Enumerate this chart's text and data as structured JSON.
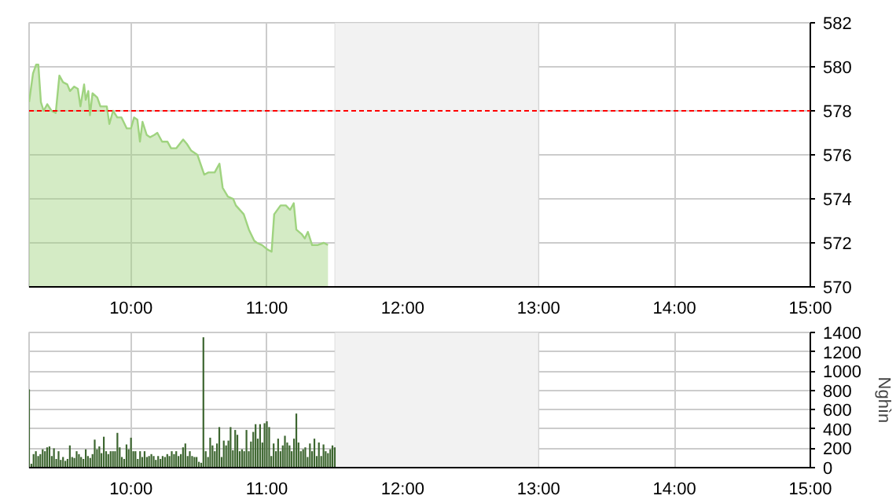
{
  "chart_data": [
    {
      "type": "area",
      "x": [
        9.25,
        9.279,
        9.302,
        9.318,
        9.337,
        9.357,
        9.384,
        9.415,
        9.446,
        9.473,
        9.5,
        9.531,
        9.551,
        9.582,
        9.609,
        9.628,
        9.655,
        9.667,
        9.686,
        9.698,
        9.717,
        9.752,
        9.775,
        9.822,
        9.841,
        9.868,
        9.899,
        9.93,
        9.969,
        10.0,
        10.023,
        10.047,
        10.066,
        10.085,
        10.116,
        10.14,
        10.171,
        10.194,
        10.229,
        10.268,
        10.295,
        10.334,
        10.384,
        10.411,
        10.442,
        10.489,
        10.539,
        10.57,
        10.616,
        10.651,
        10.675,
        10.713,
        10.752,
        10.772,
        10.83,
        10.868,
        10.907,
        10.927,
        10.965,
        11.004,
        11.035,
        11.054,
        11.101,
        11.14,
        11.171,
        11.198,
        11.217,
        11.256,
        11.279,
        11.302,
        11.333,
        11.372,
        11.419,
        11.45
      ],
      "series": [
        {
          "color": "#9fd37f",
          "values": [
            578.4,
            579.7,
            580.1,
            580.1,
            578.4,
            578.0,
            578.3,
            578.0,
            577.9,
            579.6,
            579.3,
            579.2,
            578.9,
            579.1,
            579.0,
            578.2,
            579.2,
            578.5,
            578.9,
            577.8,
            578.8,
            578.6,
            578.2,
            578.2,
            577.4,
            578.0,
            577.7,
            577.7,
            577.2,
            577.2,
            577.7,
            577.6,
            576.6,
            577.5,
            576.9,
            576.8,
            576.9,
            577.0,
            576.6,
            576.6,
            576.3,
            576.3,
            576.7,
            576.5,
            576.2,
            576.0,
            575.1,
            575.2,
            575.2,
            575.6,
            574.5,
            574.1,
            574.0,
            573.7,
            573.3,
            572.6,
            572.1,
            572.0,
            571.9,
            571.7,
            571.6,
            573.3,
            573.7,
            573.7,
            573.5,
            573.8,
            572.6,
            572.4,
            572.2,
            572.5,
            571.9,
            571.9,
            572.0,
            571.9
          ]
        }
      ],
      "xlim": [
        9.25,
        15
      ],
      "xticks": [
        {
          "value": 10,
          "label": "10:00"
        },
        {
          "value": 11,
          "label": "11:00"
        },
        {
          "value": 12,
          "label": "12:00"
        },
        {
          "value": 13,
          "label": "13:00"
        },
        {
          "value": 14,
          "label": "14:00"
        },
        {
          "value": 15,
          "label": "15:00"
        }
      ],
      "ylim": [
        570,
        582
      ],
      "yticks": [
        570,
        572,
        574,
        576,
        578,
        580,
        582
      ],
      "ref_lines": [
        {
          "axis": "y",
          "value": 578,
          "color": "#ff0000",
          "line_style": "dashed"
        }
      ],
      "bands": [
        {
          "axis": "x",
          "from": 11.5,
          "to": 13,
          "color": "#f2f2f2"
        }
      ],
      "grid": true
    },
    {
      "type": "bar",
      "ylabel": "Nghìn",
      "x": [
        9.25,
        9.267,
        9.283,
        9.3,
        9.317,
        9.333,
        9.35,
        9.367,
        9.383,
        9.4,
        9.417,
        9.433,
        9.45,
        9.467,
        9.483,
        9.5,
        9.517,
        9.533,
        9.55,
        9.567,
        9.583,
        9.6,
        9.617,
        9.633,
        9.65,
        9.667,
        9.683,
        9.7,
        9.717,
        9.733,
        9.75,
        9.767,
        9.783,
        9.8,
        9.817,
        9.833,
        9.85,
        9.867,
        9.883,
        9.9,
        9.917,
        9.933,
        9.95,
        9.967,
        9.983,
        10.0,
        10.017,
        10.033,
        10.05,
        10.067,
        10.083,
        10.1,
        10.117,
        10.133,
        10.15,
        10.167,
        10.183,
        10.2,
        10.217,
        10.233,
        10.25,
        10.267,
        10.283,
        10.3,
        10.317,
        10.333,
        10.35,
        10.367,
        10.383,
        10.4,
        10.417,
        10.433,
        10.45,
        10.467,
        10.483,
        10.5,
        10.517,
        10.533,
        10.55,
        10.567,
        10.583,
        10.6,
        10.617,
        10.633,
        10.65,
        10.667,
        10.683,
        10.7,
        10.717,
        10.733,
        10.75,
        10.767,
        10.783,
        10.8,
        10.817,
        10.833,
        10.85,
        10.867,
        10.883,
        10.9,
        10.917,
        10.933,
        10.95,
        10.967,
        10.983,
        11.0,
        11.017,
        11.033,
        11.05,
        11.067,
        11.083,
        11.1,
        11.117,
        11.133,
        11.15,
        11.167,
        11.183,
        11.2,
        11.217,
        11.233,
        11.25,
        11.267,
        11.283,
        11.3,
        11.317,
        11.333,
        11.35,
        11.367,
        11.383,
        11.4,
        11.417,
        11.433,
        11.45,
        11.467,
        11.483,
        11.5
      ],
      "series": [
        {
          "color": "#3d6630",
          "values": [
            810,
            40,
            140,
            170,
            120,
            140,
            190,
            170,
            210,
            220,
            120,
            200,
            90,
            170,
            80,
            110,
            70,
            90,
            230,
            110,
            100,
            170,
            140,
            110,
            90,
            190,
            120,
            100,
            140,
            290,
            190,
            220,
            150,
            320,
            170,
            140,
            170,
            170,
            170,
            360,
            210,
            110,
            90,
            240,
            190,
            310,
            170,
            170,
            90,
            170,
            110,
            170,
            110,
            120,
            140,
            120,
            80,
            120,
            90,
            120,
            110,
            140,
            120,
            170,
            140,
            170,
            120,
            140,
            210,
            250,
            120,
            170,
            120,
            110,
            110,
            60,
            50,
            1350,
            170,
            110,
            310,
            230,
            170,
            250,
            420,
            110,
            280,
            230,
            280,
            420,
            180,
            390,
            340,
            170,
            190,
            170,
            390,
            170,
            270,
            370,
            450,
            300,
            450,
            260,
            460,
            480,
            420,
            120,
            250,
            170,
            300,
            170,
            230,
            330,
            260,
            230,
            170,
            300,
            560,
            260,
            170,
            190,
            210,
            110,
            250,
            170,
            300,
            120,
            260,
            120,
            240,
            170,
            150,
            190,
            230,
            210
          ]
        }
      ],
      "xlim": [
        9.25,
        15
      ],
      "xticks": [
        {
          "value": 10,
          "label": "10:00"
        },
        {
          "value": 11,
          "label": "11:00"
        },
        {
          "value": 12,
          "label": "12:00"
        },
        {
          "value": 13,
          "label": "13:00"
        },
        {
          "value": 14,
          "label": "14:00"
        },
        {
          "value": 15,
          "label": "15:00"
        }
      ],
      "ylim": [
        0,
        1400
      ],
      "yticks": [
        0,
        200,
        400,
        600,
        800,
        1000,
        1200,
        1400
      ],
      "bands": [
        {
          "axis": "x",
          "from": 11.5,
          "to": 13,
          "color": "#f2f2f2"
        }
      ],
      "grid": true
    }
  ]
}
